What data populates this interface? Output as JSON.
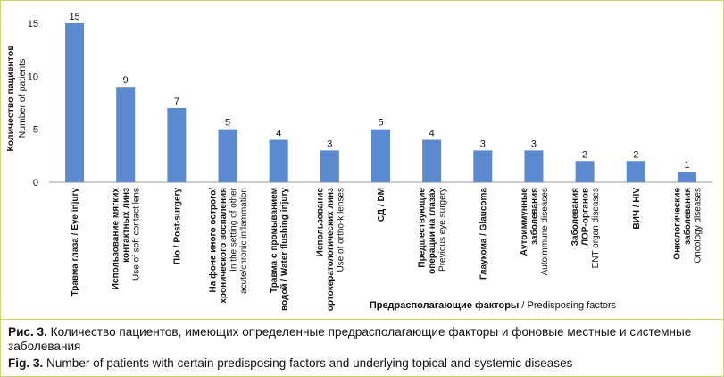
{
  "chart_data": {
    "type": "bar",
    "ylabel_ru": "Количество пациентов",
    "ylabel_en": "Number of patients",
    "xlabel_ru": "Предрасполагающие факторы",
    "xlabel_en": " / Predisposing factors",
    "ylim": [
      0,
      15
    ],
    "yticks": [
      "0",
      "5",
      "10",
      "15"
    ],
    "bar_color": "#5b8ad0",
    "grid": false,
    "categories": [
      {
        "ru": [
          "Травма глаза / Eye injury"
        ],
        "en": []
      },
      {
        "ru": [
          "Использование мягких",
          "контактных линз"
        ],
        "en": [
          "Use of soft contact lens"
        ]
      },
      {
        "ru": [
          "П/о / Post-surgery"
        ],
        "en": []
      },
      {
        "ru": [
          "На фоне иного острого/",
          "хронического воспаления"
        ],
        "en": [
          "In the setting of other",
          "acute/chronic inflammation"
        ]
      },
      {
        "ru": [
          "Травма с промыванием",
          "водой / Water flushing injury"
        ],
        "en": []
      },
      {
        "ru": [
          "Использование",
          "ортокератологических линз"
        ],
        "en": [
          "Use of ortho-k lenses"
        ]
      },
      {
        "ru": [
          "СД / DM"
        ],
        "en": []
      },
      {
        "ru": [
          "Предшествующие",
          "операции на глазах"
        ],
        "en": [
          "Previous eye surgery"
        ]
      },
      {
        "ru": [
          "Глаукома / Glaucoma"
        ],
        "en": []
      },
      {
        "ru": [
          "Аутоиммунные",
          "заболевания"
        ],
        "en": [
          "Autoimmune diseases"
        ]
      },
      {
        "ru": [
          "Заболевания",
          "ЛОР-органов"
        ],
        "en": [
          "ENT organ diseases"
        ]
      },
      {
        "ru": [
          "ВИЧ / HIV"
        ],
        "en": []
      },
      {
        "ru": [
          "Онкологические",
          "заболевания"
        ],
        "en": [
          "Oncology diseases"
        ]
      }
    ],
    "values": [
      15,
      9,
      7,
      5,
      4,
      3,
      5,
      4,
      3,
      3,
      2,
      2,
      1
    ],
    "data_labels": [
      "15",
      "9",
      "7",
      "5",
      "4",
      "3",
      "5",
      "4",
      "3",
      "3",
      "2",
      "2",
      "1"
    ]
  },
  "caption": {
    "ru_prefix": "Рис. 3.",
    "ru_text": " Количество пациентов, имеющих определенные предрасполагающие факторы и фоновые местные и системные заболевания",
    "en_prefix": "Fig. 3.",
    "en_text": " Number of patients with certain predisposing factors and underlying topical and systemic diseases"
  }
}
